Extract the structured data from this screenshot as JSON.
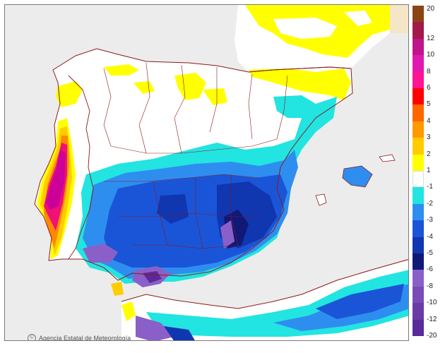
{
  "colors": {
    "sea": "#ececec",
    "land_white": "#ffffff",
    "yellow": "#ffff00",
    "yellow_light": "#fff7a0",
    "gold": "#ffcc00",
    "orange": "#ff8800",
    "red": "#ff2200",
    "pink": "#ee1177",
    "magenta": "#cc0099",
    "cyan": "#22e4e0",
    "cyan_light": "#88f4f0",
    "blue_mid": "#2e8ef0",
    "blue": "#1a55d8",
    "blue_dark": "#1036b0",
    "navy": "#101878",
    "purple": "#8a60c8",
    "purple_dark": "#5a2a9a",
    "border": "#8b1a1a",
    "africa_tan": "#f5e6c8"
  },
  "credit": {
    "text": "Agencia Estatal de Meteorología",
    "icon": "copyright-icon"
  },
  "legend": {
    "items": [
      {
        "label": "20",
        "color": "#8b4513"
      },
      {
        "label": "12",
        "color": "#a31a4a"
      },
      {
        "label": "10",
        "color": "#c0158a"
      },
      {
        "label": "8",
        "color": "#e01ab0"
      },
      {
        "label": "6",
        "color": "#ff1493"
      },
      {
        "label": "5",
        "color": "#ff0000"
      },
      {
        "label": "4",
        "color": "#ff6600"
      },
      {
        "label": "3",
        "color": "#ff9900"
      },
      {
        "label": "2",
        "color": "#ffcc00"
      },
      {
        "label": "1",
        "color": "#ffff00"
      },
      {
        "label": "-1",
        "color": "#ffffff"
      },
      {
        "label": "-2",
        "color": "#22e4e0"
      },
      {
        "label": "-3",
        "color": "#2e8ef0"
      },
      {
        "label": "-4",
        "color": "#1a55d8"
      },
      {
        "label": "-5",
        "color": "#1036b0"
      },
      {
        "label": "-6",
        "color": "#101878"
      },
      {
        "label": "-8",
        "color": "#8a60c8"
      },
      {
        "label": "-10",
        "color": "#7a4ab8"
      },
      {
        "label": "-12",
        "color": "#6a3aa8"
      },
      {
        "label": "-20",
        "color": "#5a2a9a"
      }
    ]
  }
}
